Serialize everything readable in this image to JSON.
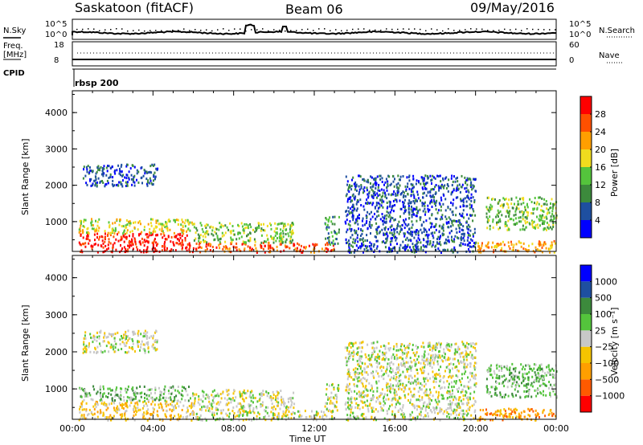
{
  "header": {
    "station": "Saskatoon (fitACF)",
    "beam": "Beam 06",
    "date": "09/May/2016"
  },
  "top_panel": {
    "left_label_top": "N.Sky",
    "left_ticks": [
      "10^5",
      "10^0"
    ],
    "right_ticks": [
      "10^5",
      "10^0"
    ],
    "right_label": "N.Search"
  },
  "freq_panel": {
    "left_label_1": "Freq.",
    "left_label_2": "[MHz]",
    "left_ticks": [
      "18",
      "8"
    ],
    "right_ticks": [
      "60",
      "0"
    ],
    "right_label": "Nave",
    "cpid_label": "CPID",
    "cpid_value": "rbsp 200"
  },
  "chart_data": [
    {
      "type": "heatmap",
      "title": "",
      "xlabel": "Time UT",
      "ylabel": "Slant Range [km]",
      "xticks": [
        "00:00",
        "04:00",
        "08:00",
        "12:00",
        "16:00",
        "20:00",
        "00:00"
      ],
      "xlim_hours": [
        0,
        24
      ],
      "yticks": [
        "1000",
        "2000",
        "3000",
        "4000"
      ],
      "ylim": [
        180,
        4600
      ],
      "colorbar": {
        "label": "Power [dB]",
        "ticks": [
          "4",
          "8",
          "12",
          "16",
          "20",
          "24",
          "28"
        ],
        "range": [
          0,
          30
        ],
        "colors": [
          "#0000ff",
          "#1e4fa0",
          "#3c8a3c",
          "#54c43c",
          "#f0dc1e",
          "#ff9f00",
          "#ff5000",
          "#ff0000"
        ]
      },
      "regions": [
        {
          "t0": 0.3,
          "t1": 6.0,
          "r0": 180,
          "r1": 700,
          "level": 7
        },
        {
          "t0": 0.3,
          "t1": 6.0,
          "r0": 700,
          "r1": 1100,
          "level": 4
        },
        {
          "t0": 6.0,
          "t1": 13.0,
          "r0": 180,
          "r1": 450,
          "level": 6
        },
        {
          "t0": 6.0,
          "t1": 11.0,
          "r0": 450,
          "r1": 1000,
          "level": 3
        },
        {
          "t0": 0.5,
          "t1": 4.2,
          "r0": 2000,
          "r1": 2600,
          "level": 1
        },
        {
          "t0": 12.5,
          "t1": 13.2,
          "r0": 400,
          "r1": 1200,
          "level": 2
        },
        {
          "t0": 13.5,
          "t1": 20.0,
          "r0": 180,
          "r1": 2300,
          "level": 1
        },
        {
          "t0": 20.0,
          "t1": 24.0,
          "r0": 180,
          "r1": 500,
          "level": 5
        },
        {
          "t0": 20.5,
          "t1": 24.0,
          "r0": 800,
          "r1": 1700,
          "level": 3
        }
      ]
    },
    {
      "type": "heatmap",
      "title": "",
      "xlabel": "Time UT",
      "ylabel": "Slant Range [km]",
      "xticks": [
        "00:00",
        "04:00",
        "08:00",
        "12:00",
        "16:00",
        "20:00",
        "00:00"
      ],
      "xlim_hours": [
        0,
        24
      ],
      "yticks": [
        "1000",
        "2000",
        "3000",
        "4000"
      ],
      "ylim": [
        180,
        4600
      ],
      "colorbar": {
        "label": "Velocity [m s⁻¹]",
        "ticks": [
          "1000",
          "500",
          "100",
          "25",
          "−25",
          "−100",
          "−500",
          "−1000"
        ],
        "range": [
          -1000,
          1000
        ],
        "colors": [
          "#ff0000",
          "#ff5a00",
          "#ff9f00",
          "#f5c400",
          "#c8c8c8",
          "#54c43c",
          "#3c8a3c",
          "#1e4fa0",
          "#0000ff"
        ]
      },
      "regions": [
        {
          "t0": 0.3,
          "t1": 6.0,
          "r0": 180,
          "r1": 700,
          "level": 3
        },
        {
          "t0": 0.3,
          "t1": 6.0,
          "r0": 700,
          "r1": 1100,
          "level": 5
        },
        {
          "t0": 6.0,
          "t1": 13.0,
          "r0": 180,
          "r1": 450,
          "level": 4
        },
        {
          "t0": 6.0,
          "t1": 11.0,
          "r0": 450,
          "r1": 1000,
          "level": 4
        },
        {
          "t0": 0.5,
          "t1": 4.2,
          "r0": 2000,
          "r1": 2600,
          "level": 4
        },
        {
          "t0": 12.5,
          "t1": 13.2,
          "r0": 400,
          "r1": 1200,
          "level": 4
        },
        {
          "t0": 13.5,
          "t1": 20.0,
          "r0": 180,
          "r1": 2300,
          "level": 4
        },
        {
          "t0": 20.0,
          "t1": 24.0,
          "r0": 180,
          "r1": 500,
          "level": 2
        },
        {
          "t0": 20.5,
          "t1": 24.0,
          "r0": 800,
          "r1": 1700,
          "level": 5
        }
      ]
    }
  ]
}
